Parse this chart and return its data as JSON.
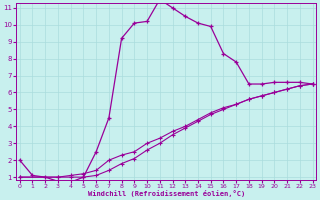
{
  "xlabel": "Windchill (Refroidissement éolien,°C)",
  "xlim": [
    0,
    23
  ],
  "ylim": [
    1,
    11
  ],
  "yticks": [
    1,
    2,
    3,
    4,
    5,
    6,
    7,
    8,
    9,
    10,
    11
  ],
  "xticks": [
    0,
    1,
    2,
    3,
    4,
    5,
    6,
    7,
    8,
    9,
    10,
    11,
    12,
    13,
    14,
    15,
    16,
    17,
    18,
    19,
    20,
    21,
    22,
    23
  ],
  "background_color": "#c8f0ee",
  "line_color": "#990099",
  "grid_color": "#aadddd",
  "curve1_x": [
    0,
    1,
    2,
    3,
    4,
    5,
    6,
    7,
    8,
    9,
    10,
    11,
    12,
    13,
    14,
    15,
    16,
    17,
    18,
    19,
    20,
    21,
    22,
    23
  ],
  "curve1_y": [
    2.0,
    1.1,
    1.0,
    0.75,
    0.7,
    1.0,
    2.5,
    4.5,
    9.2,
    10.1,
    10.2,
    11.5,
    11.0,
    10.5,
    10.1,
    9.9,
    8.3,
    7.8,
    6.5,
    6.5,
    6.6,
    6.6,
    6.6,
    6.5
  ],
  "curve2_x": [
    0,
    3,
    4,
    5,
    6,
    7,
    8,
    9,
    10,
    11,
    12,
    13,
    14,
    15,
    16,
    17,
    18,
    19,
    20,
    21,
    22,
    23
  ],
  "curve2_y": [
    1.0,
    1.0,
    1.1,
    1.2,
    1.4,
    2.0,
    2.3,
    2.5,
    3.0,
    3.3,
    3.7,
    4.0,
    4.4,
    4.8,
    5.1,
    5.3,
    5.6,
    5.8,
    6.0,
    6.2,
    6.4,
    6.5
  ],
  "curve3_x": [
    0,
    3,
    4,
    5,
    6,
    7,
    8,
    9,
    10,
    11,
    12,
    13,
    14,
    15,
    16,
    17,
    18,
    19,
    20,
    21,
    22,
    23
  ],
  "curve3_y": [
    1.0,
    1.0,
    1.0,
    1.0,
    1.1,
    1.4,
    1.8,
    2.1,
    2.6,
    3.0,
    3.5,
    3.9,
    4.3,
    4.7,
    5.0,
    5.3,
    5.6,
    5.8,
    6.0,
    6.2,
    6.4,
    6.5
  ]
}
